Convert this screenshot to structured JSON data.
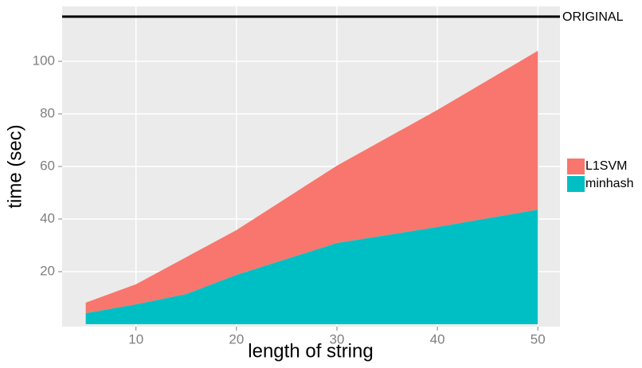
{
  "chart_data": {
    "type": "area",
    "stacked": true,
    "x_label": "length of string",
    "y_label": "time (sec)",
    "x": [
      5,
      10,
      15,
      20,
      30,
      40,
      50
    ],
    "series": [
      {
        "name": "L1SVM",
        "color": "#f8766d",
        "values": [
          4.0,
          7.6,
          14.0,
          17.0,
          29.4,
          44.5,
          60.4
        ]
      },
      {
        "name": "minhash",
        "color": "#00bfc4",
        "values": [
          4.2,
          7.6,
          11.5,
          18.8,
          30.9,
          37.0,
          43.6
        ]
      }
    ],
    "reference_line": {
      "value": 117,
      "label": "ORIGINAL"
    },
    "xlim": [
      2.65,
      52.2
    ],
    "ylim": [
      -0.9,
      120.9
    ],
    "xticks": [
      10,
      20,
      30,
      40,
      50
    ],
    "yticks": [
      20,
      40,
      60,
      80,
      100
    ],
    "grid": true
  }
}
